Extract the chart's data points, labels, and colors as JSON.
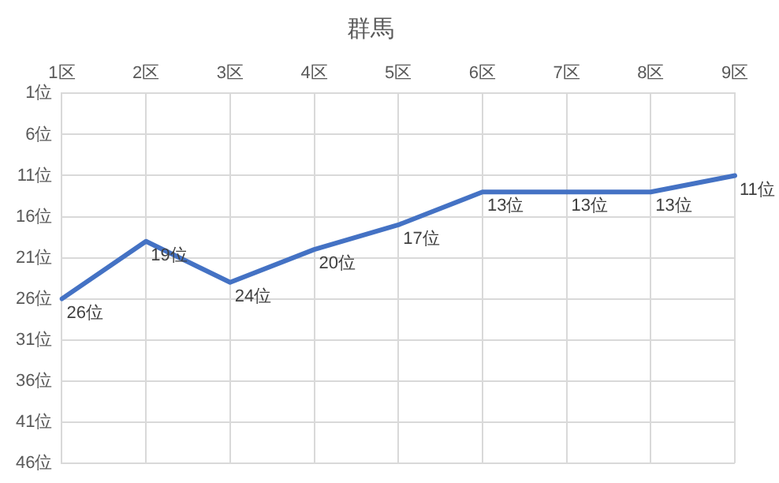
{
  "chart_data": {
    "type": "line",
    "title": "群馬",
    "categories": [
      "1区",
      "2区",
      "3区",
      "4区",
      "5区",
      "6区",
      "7区",
      "8区",
      "9区"
    ],
    "series": [
      {
        "color": "#4472c4",
        "values": [
          26,
          19,
          24,
          20,
          17,
          13,
          13,
          13,
          11
        ],
        "value_labels": [
          "26位",
          "19位",
          "24位",
          "20位",
          "17位",
          "13位",
          "13位",
          "13位",
          "11位"
        ]
      }
    ],
    "ylim": [
      46,
      1
    ],
    "yticks": [
      {
        "value": 1,
        "label": "1位"
      },
      {
        "value": 6,
        "label": "6位"
      },
      {
        "value": 11,
        "label": "11位"
      },
      {
        "value": 16,
        "label": "16位"
      },
      {
        "value": 21,
        "label": "21位"
      },
      {
        "value": 26,
        "label": "26位"
      },
      {
        "value": 31,
        "label": "31位"
      },
      {
        "value": 36,
        "label": "36位"
      },
      {
        "value": 41,
        "label": "41位"
      },
      {
        "value": 46,
        "label": "46位"
      }
    ],
    "grid": true,
    "legend": false,
    "marker": "none",
    "line_style": "solid"
  }
}
